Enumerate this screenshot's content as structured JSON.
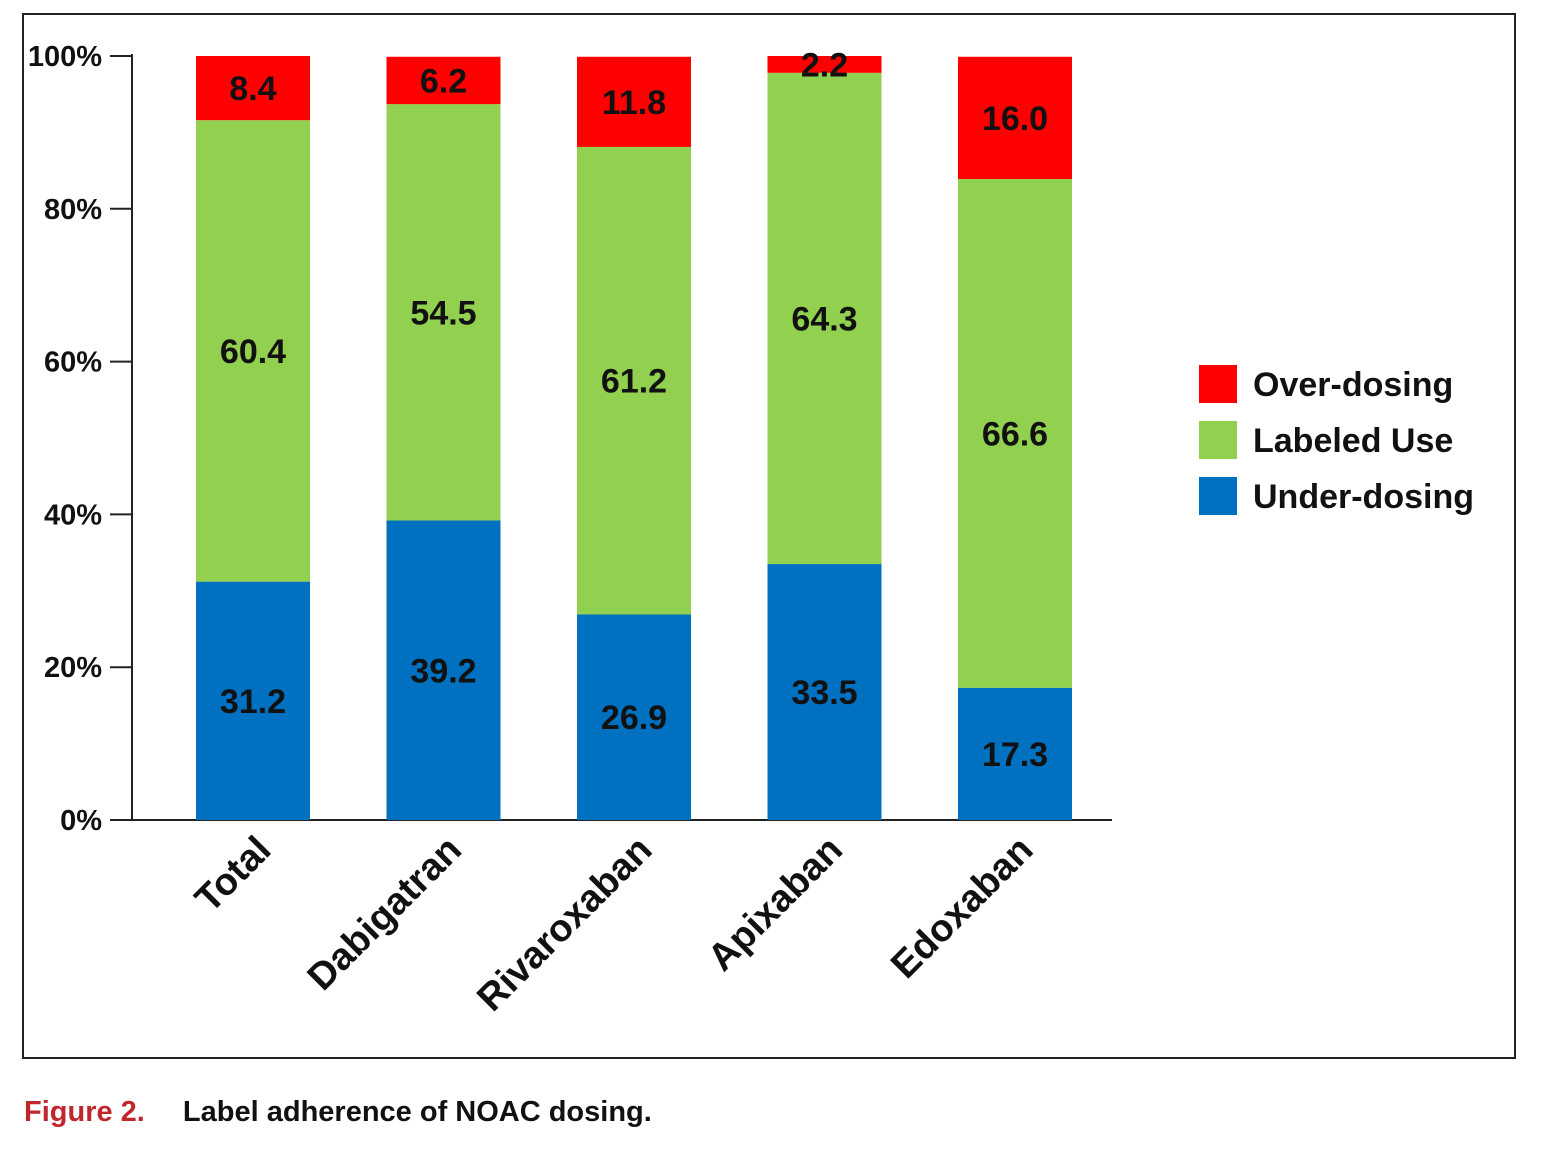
{
  "chart_data": {
    "type": "bar",
    "stacked": true,
    "categories": [
      "Total",
      "Dabigatran",
      "Rivaroxaban",
      "Apixaban",
      "Edoxaban"
    ],
    "series": [
      {
        "name": "Under-dosing",
        "color": "#0070c0",
        "values": [
          31.2,
          39.2,
          26.9,
          33.5,
          17.3
        ]
      },
      {
        "name": "Labeled Use",
        "color": "#92d050",
        "values": [
          60.4,
          54.5,
          61.2,
          64.3,
          66.6
        ]
      },
      {
        "name": "Over-dosing",
        "color": "#ff0000",
        "values": [
          8.4,
          6.2,
          11.8,
          2.2,
          16.0
        ]
      }
    ],
    "legend_order": [
      "Over-dosing",
      "Labeled Use",
      "Under-dosing"
    ],
    "legend_position": "right",
    "yticks": [
      "0%",
      "20%",
      "40%",
      "60%",
      "80%",
      "100%"
    ],
    "ylim": [
      0,
      100
    ],
    "grid": false,
    "title": "",
    "xlabel": "",
    "ylabel": ""
  },
  "caption": {
    "figure_label": "Figure 2.",
    "text": "Label adherence of NOAC dosing."
  }
}
